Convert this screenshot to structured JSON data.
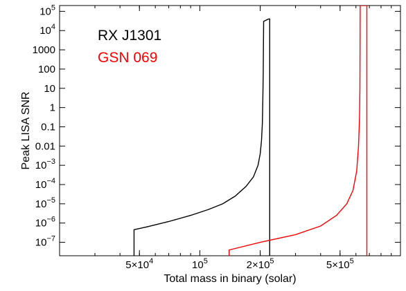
{
  "chart_data": {
    "type": "line",
    "xlabel": "Total mass in binary (solar)",
    "ylabel": "Peak LISA SNR",
    "xscale": "log",
    "yscale": "log",
    "xlim": [
      20000,
      1000000
    ],
    "ylim": [
      2e-08,
      200000
    ],
    "x_ticks": [
      {
        "value": 50000,
        "mantissa": "5×10",
        "exp": "4"
      },
      {
        "value": 100000,
        "mantissa": "10",
        "exp": "5"
      },
      {
        "value": 200000,
        "mantissa": "2×10",
        "exp": "5"
      },
      {
        "value": 500000,
        "mantissa": "5×10",
        "exp": "5"
      }
    ],
    "y_ticks": [
      {
        "value": 100000,
        "mantissa": "10",
        "exp": "5"
      },
      {
        "value": 10000,
        "mantissa": "10",
        "exp": "4"
      },
      {
        "value": 1000,
        "mantissa": "1000",
        "exp": ""
      },
      {
        "value": 100,
        "mantissa": "100",
        "exp": ""
      },
      {
        "value": 10,
        "mantissa": "10",
        "exp": ""
      },
      {
        "value": 1,
        "mantissa": "1",
        "exp": ""
      },
      {
        "value": 0.1,
        "mantissa": "0.1",
        "exp": ""
      },
      {
        "value": 0.01,
        "mantissa": "0.01",
        "exp": ""
      },
      {
        "value": 0.001,
        "mantissa": "10",
        "exp": "−3"
      },
      {
        "value": 0.0001,
        "mantissa": "10",
        "exp": "−4"
      },
      {
        "value": 1e-05,
        "mantissa": "10",
        "exp": "−5"
      },
      {
        "value": 1e-06,
        "mantissa": "10",
        "exp": "−6"
      },
      {
        "value": 1e-07,
        "mantissa": "10",
        "exp": "−7"
      }
    ],
    "legend_placement": "top-left",
    "series": [
      {
        "name": "RX J1301",
        "color": "#000000",
        "x": [
          47000,
          47000,
          55000,
          70000,
          90000,
          110000,
          130000,
          150000,
          170000,
          185000,
          195000,
          200000,
          203000,
          205000,
          206000,
          207000,
          208000,
          220000,
          223000,
          223000
        ],
        "y": [
          2e-08,
          4.5e-07,
          6.5e-07,
          1.2e-06,
          2.5e-06,
          5e-06,
          1e-05,
          2.5e-05,
          8e-05,
          0.00025,
          0.001,
          0.004,
          0.02,
          0.15,
          2,
          50,
          30000,
          40000,
          40000,
          2e-08
        ]
      },
      {
        "name": "GSN 069",
        "color": "#ff0000",
        "x": [
          140000,
          140000,
          200000,
          300000,
          400000,
          480000,
          540000,
          580000,
          605000,
          618000,
          625000,
          628000,
          629000,
          630000,
          675000,
          680000,
          680000
        ],
        "y": [
          2e-08,
          4e-08,
          1e-07,
          2.5e-07,
          7e-07,
          2.5e-06,
          1e-05,
          5e-05,
          0.0005,
          0.01,
          0.3,
          10,
          1000,
          200000,
          200000,
          200000,
          2e-08
        ]
      }
    ]
  }
}
